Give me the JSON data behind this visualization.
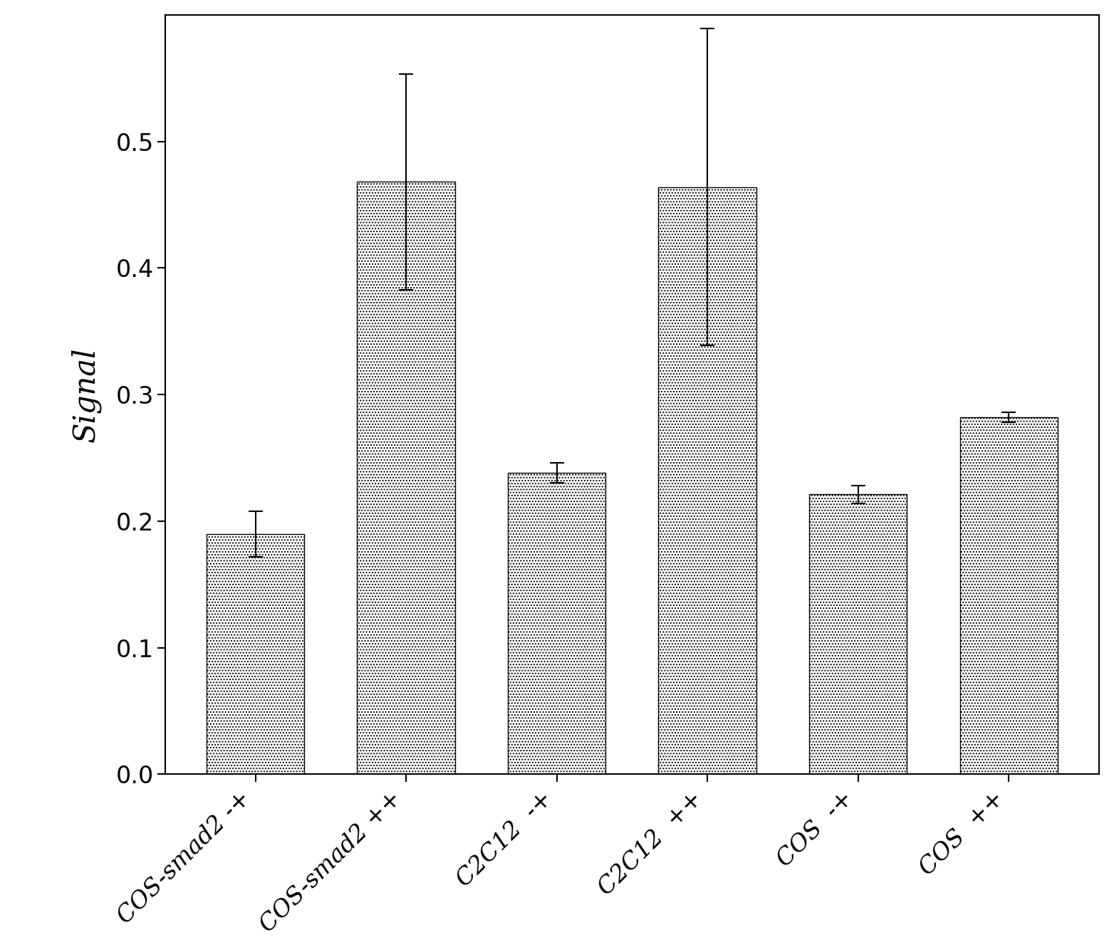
{
  "categories": [
    "COS-smad2 -+",
    "COS-smad2 ++",
    "C2C12  -+",
    "C2C12  ++",
    "COS  -+",
    "COS  ++"
  ],
  "values": [
    0.19,
    0.468,
    0.238,
    0.464,
    0.221,
    0.282
  ],
  "errors": [
    0.018,
    0.085,
    0.008,
    0.125,
    0.007,
    0.004
  ],
  "ylabel": "Signal",
  "ylim": [
    0.0,
    0.6
  ],
  "yticks": [
    0.0,
    0.1,
    0.2,
    0.3,
    0.4,
    0.5
  ],
  "bar_color": "#ffffff",
  "bar_edgecolor": "#000000",
  "hatch": "....",
  "figsize": [
    15.64,
    13.37
  ],
  "dpi": 100,
  "ylabel_fontsize": 30,
  "tick_fontsize": 24,
  "xtick_fontsize": 24,
  "background_color": "#ffffff",
  "tick_labels": [
    "COS-smad2 -+",
    "COS-smad2 ++",
    "C2C12  -+",
    "C2C12  ++",
    "COS  -+",
    "COS  ++"
  ]
}
